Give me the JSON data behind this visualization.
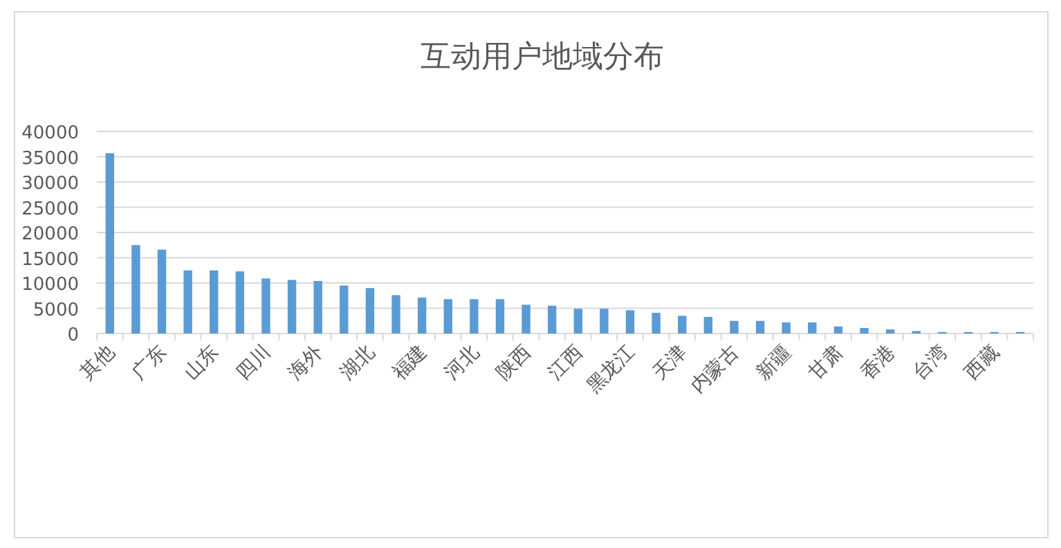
{
  "chart_data": {
    "type": "bar",
    "title": "互动用户地域分布",
    "categories": [
      "其他",
      null,
      "广东",
      null,
      "山东",
      null,
      "四川",
      null,
      "海外",
      null,
      "湖北",
      null,
      "福建",
      null,
      "河北",
      null,
      "陕西",
      null,
      "江西",
      null,
      "黑龙江",
      null,
      "天津",
      null,
      "内蒙古",
      null,
      "新疆",
      null,
      "甘肃",
      null,
      "香港",
      null,
      "台湾",
      null,
      "西藏",
      null
    ],
    "values": [
      35700,
      17500,
      16600,
      12500,
      12500,
      12300,
      10900,
      10600,
      10400,
      9500,
      9000,
      7600,
      7100,
      6800,
      6800,
      6800,
      5700,
      5500,
      4900,
      4900,
      4600,
      4100,
      3500,
      3300,
      2500,
      2500,
      2200,
      2200,
      1400,
      1100,
      800,
      500,
      300,
      300,
      300,
      300
    ],
    "color": "#5b9bd5",
    "ylim": [
      0,
      40000
    ],
    "yticks": [
      0,
      5000,
      10000,
      15000,
      20000,
      25000,
      30000,
      35000,
      40000
    ],
    "grid": "y"
  }
}
